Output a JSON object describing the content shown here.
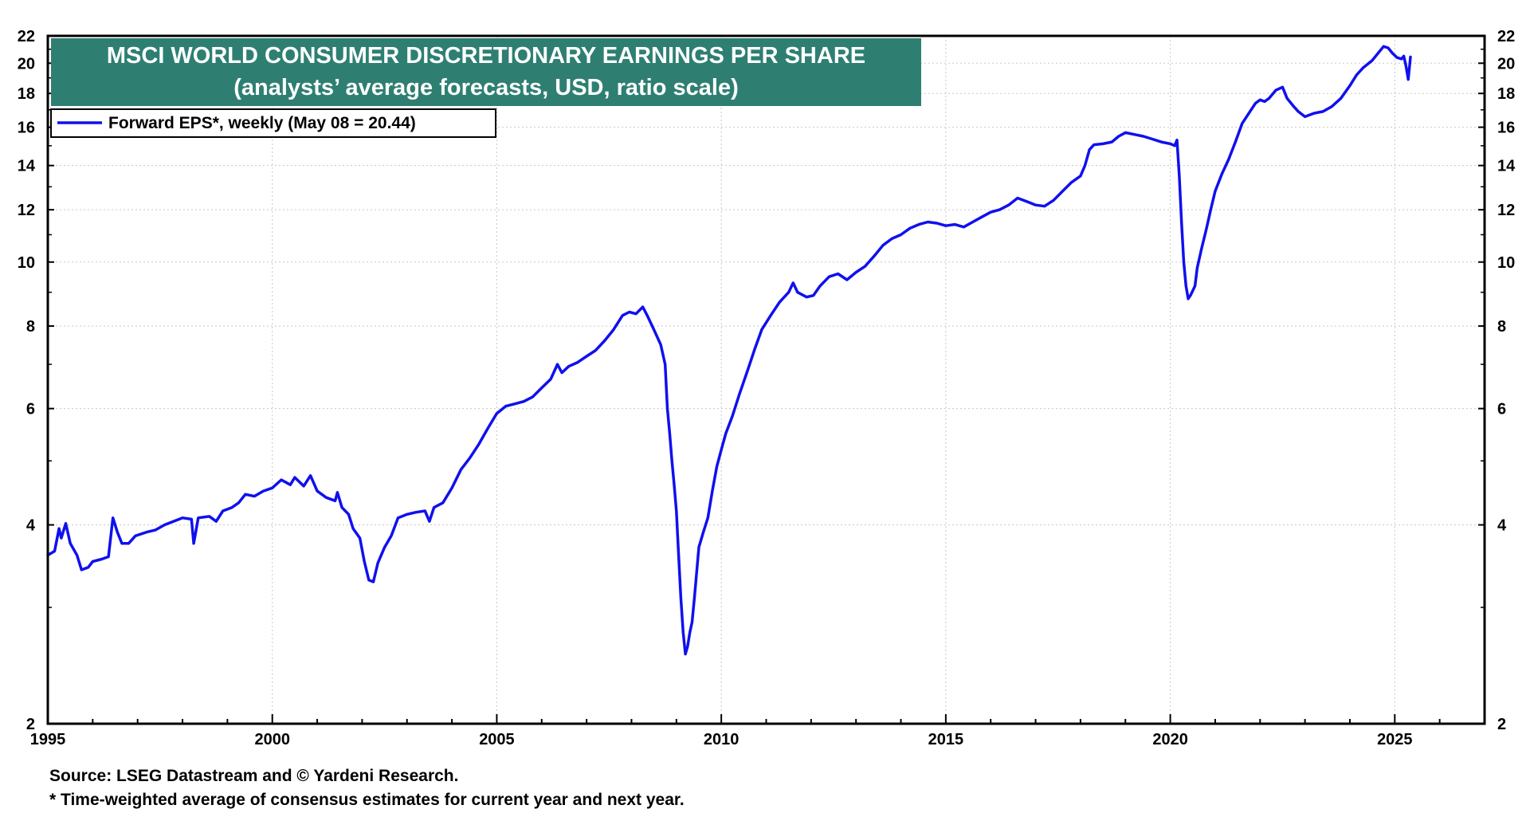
{
  "chart_data": {
    "type": "line",
    "title": "MSCI WORLD CONSUMER DISCRETIONARY EARNINGS PER SHARE",
    "subtitle": "(analysts’ average forecasts, USD, ratio scale)",
    "legend": {
      "entry": "Forward EPS*, weekly (May 08 = 20.44)",
      "placement": "top-left"
    },
    "scale": "log",
    "xlim": [
      1995,
      2027
    ],
    "ylim": [
      2,
      22
    ],
    "x_ticks": [
      1995,
      2000,
      2005,
      2010,
      2015,
      2020,
      2025
    ],
    "y_ticks": [
      2,
      4,
      6,
      8,
      10,
      12,
      14,
      16,
      18,
      20,
      22
    ],
    "grid": true,
    "line_color": "#1010ee",
    "title_bg": "#2e7f72",
    "series": [
      {
        "name": "Forward EPS*, weekly (May 08 = 20.44)",
        "points": [
          [
            1995.0,
            3.6
          ],
          [
            1995.15,
            3.65
          ],
          [
            1995.25,
            3.95
          ],
          [
            1995.3,
            3.82
          ],
          [
            1995.4,
            4.02
          ],
          [
            1995.5,
            3.75
          ],
          [
            1995.65,
            3.6
          ],
          [
            1995.75,
            3.42
          ],
          [
            1995.9,
            3.45
          ],
          [
            1996.0,
            3.52
          ],
          [
            1996.2,
            3.55
          ],
          [
            1996.35,
            3.58
          ],
          [
            1996.45,
            4.1
          ],
          [
            1996.55,
            3.9
          ],
          [
            1996.65,
            3.75
          ],
          [
            1996.8,
            3.75
          ],
          [
            1996.95,
            3.85
          ],
          [
            1997.2,
            3.9
          ],
          [
            1997.4,
            3.93
          ],
          [
            1997.6,
            4.0
          ],
          [
            1997.8,
            4.05
          ],
          [
            1998.0,
            4.1
          ],
          [
            1998.2,
            4.08
          ],
          [
            1998.25,
            3.75
          ],
          [
            1998.35,
            4.1
          ],
          [
            1998.6,
            4.12
          ],
          [
            1998.75,
            4.05
          ],
          [
            1998.9,
            4.2
          ],
          [
            1999.1,
            4.25
          ],
          [
            1999.25,
            4.32
          ],
          [
            1999.4,
            4.45
          ],
          [
            1999.6,
            4.42
          ],
          [
            1999.8,
            4.5
          ],
          [
            2000.0,
            4.55
          ],
          [
            2000.2,
            4.68
          ],
          [
            2000.4,
            4.6
          ],
          [
            2000.5,
            4.72
          ],
          [
            2000.7,
            4.58
          ],
          [
            2000.85,
            4.75
          ],
          [
            2001.0,
            4.5
          ],
          [
            2001.2,
            4.4
          ],
          [
            2001.4,
            4.35
          ],
          [
            2001.45,
            4.48
          ],
          [
            2001.55,
            4.25
          ],
          [
            2001.7,
            4.15
          ],
          [
            2001.8,
            3.95
          ],
          [
            2001.95,
            3.82
          ],
          [
            2002.05,
            3.52
          ],
          [
            2002.15,
            3.3
          ],
          [
            2002.25,
            3.28
          ],
          [
            2002.35,
            3.5
          ],
          [
            2002.5,
            3.7
          ],
          [
            2002.65,
            3.85
          ],
          [
            2002.8,
            4.1
          ],
          [
            2003.0,
            4.15
          ],
          [
            2003.2,
            4.18
          ],
          [
            2003.4,
            4.2
          ],
          [
            2003.5,
            4.05
          ],
          [
            2003.6,
            4.25
          ],
          [
            2003.8,
            4.32
          ],
          [
            2004.0,
            4.55
          ],
          [
            2004.2,
            4.85
          ],
          [
            2004.4,
            5.05
          ],
          [
            2004.6,
            5.3
          ],
          [
            2004.8,
            5.6
          ],
          [
            2005.0,
            5.9
          ],
          [
            2005.2,
            6.05
          ],
          [
            2005.4,
            6.1
          ],
          [
            2005.6,
            6.15
          ],
          [
            2005.8,
            6.25
          ],
          [
            2006.0,
            6.45
          ],
          [
            2006.2,
            6.65
          ],
          [
            2006.35,
            7.0
          ],
          [
            2006.45,
            6.8
          ],
          [
            2006.6,
            6.95
          ],
          [
            2006.8,
            7.05
          ],
          [
            2007.0,
            7.2
          ],
          [
            2007.2,
            7.35
          ],
          [
            2007.4,
            7.6
          ],
          [
            2007.6,
            7.9
          ],
          [
            2007.8,
            8.3
          ],
          [
            2007.95,
            8.4
          ],
          [
            2008.1,
            8.35
          ],
          [
            2008.25,
            8.55
          ],
          [
            2008.35,
            8.3
          ],
          [
            2008.5,
            7.9
          ],
          [
            2008.65,
            7.5
          ],
          [
            2008.75,
            7.0
          ],
          [
            2008.8,
            6.0
          ],
          [
            2008.85,
            5.5
          ],
          [
            2008.9,
            5.0
          ],
          [
            2008.95,
            4.6
          ],
          [
            2009.0,
            4.2
          ],
          [
            2009.05,
            3.6
          ],
          [
            2009.1,
            3.1
          ],
          [
            2009.15,
            2.75
          ],
          [
            2009.2,
            2.55
          ],
          [
            2009.25,
            2.62
          ],
          [
            2009.3,
            2.75
          ],
          [
            2009.35,
            2.85
          ],
          [
            2009.4,
            3.1
          ],
          [
            2009.5,
            3.7
          ],
          [
            2009.6,
            3.9
          ],
          [
            2009.7,
            4.1
          ],
          [
            2009.8,
            4.5
          ],
          [
            2009.9,
            4.9
          ],
          [
            2010.0,
            5.2
          ],
          [
            2010.1,
            5.5
          ],
          [
            2010.25,
            5.85
          ],
          [
            2010.4,
            6.3
          ],
          [
            2010.6,
            6.9
          ],
          [
            2010.75,
            7.4
          ],
          [
            2010.9,
            7.9
          ],
          [
            2011.1,
            8.3
          ],
          [
            2011.3,
            8.7
          ],
          [
            2011.5,
            9.0
          ],
          [
            2011.6,
            9.3
          ],
          [
            2011.7,
            9.0
          ],
          [
            2011.9,
            8.85
          ],
          [
            2012.05,
            8.9
          ],
          [
            2012.2,
            9.2
          ],
          [
            2012.4,
            9.5
          ],
          [
            2012.6,
            9.6
          ],
          [
            2012.8,
            9.4
          ],
          [
            2013.0,
            9.65
          ],
          [
            2013.2,
            9.85
          ],
          [
            2013.4,
            10.2
          ],
          [
            2013.6,
            10.6
          ],
          [
            2013.8,
            10.85
          ],
          [
            2014.0,
            11.0
          ],
          [
            2014.2,
            11.25
          ],
          [
            2014.4,
            11.4
          ],
          [
            2014.6,
            11.5
          ],
          [
            2014.8,
            11.45
          ],
          [
            2015.0,
            11.35
          ],
          [
            2015.2,
            11.4
          ],
          [
            2015.4,
            11.3
          ],
          [
            2015.6,
            11.5
          ],
          [
            2015.8,
            11.7
          ],
          [
            2016.0,
            11.9
          ],
          [
            2016.2,
            12.0
          ],
          [
            2016.4,
            12.2
          ],
          [
            2016.6,
            12.5
          ],
          [
            2016.8,
            12.35
          ],
          [
            2017.0,
            12.2
          ],
          [
            2017.2,
            12.15
          ],
          [
            2017.4,
            12.4
          ],
          [
            2017.6,
            12.8
          ],
          [
            2017.8,
            13.2
          ],
          [
            2018.0,
            13.5
          ],
          [
            2018.1,
            14.0
          ],
          [
            2018.2,
            14.8
          ],
          [
            2018.3,
            15.05
          ],
          [
            2018.5,
            15.1
          ],
          [
            2018.7,
            15.2
          ],
          [
            2018.85,
            15.5
          ],
          [
            2019.0,
            15.7
          ],
          [
            2019.2,
            15.6
          ],
          [
            2019.4,
            15.5
          ],
          [
            2019.6,
            15.35
          ],
          [
            2019.8,
            15.2
          ],
          [
            2020.0,
            15.1
          ],
          [
            2020.1,
            15.0
          ],
          [
            2020.15,
            15.3
          ],
          [
            2020.2,
            13.5
          ],
          [
            2020.25,
            11.5
          ],
          [
            2020.3,
            10.0
          ],
          [
            2020.35,
            9.2
          ],
          [
            2020.4,
            8.8
          ],
          [
            2020.45,
            8.9
          ],
          [
            2020.55,
            9.2
          ],
          [
            2020.6,
            9.8
          ],
          [
            2020.7,
            10.5
          ],
          [
            2020.8,
            11.2
          ],
          [
            2020.9,
            12.0
          ],
          [
            2021.0,
            12.8
          ],
          [
            2021.15,
            13.6
          ],
          [
            2021.3,
            14.3
          ],
          [
            2021.45,
            15.2
          ],
          [
            2021.6,
            16.2
          ],
          [
            2021.75,
            16.8
          ],
          [
            2021.9,
            17.4
          ],
          [
            2022.0,
            17.6
          ],
          [
            2022.1,
            17.5
          ],
          [
            2022.2,
            17.7
          ],
          [
            2022.35,
            18.2
          ],
          [
            2022.5,
            18.4
          ],
          [
            2022.6,
            17.7
          ],
          [
            2022.75,
            17.2
          ],
          [
            2022.85,
            16.9
          ],
          [
            2023.0,
            16.6
          ],
          [
            2023.2,
            16.8
          ],
          [
            2023.4,
            16.9
          ],
          [
            2023.6,
            17.2
          ],
          [
            2023.8,
            17.7
          ],
          [
            2024.0,
            18.5
          ],
          [
            2024.15,
            19.2
          ],
          [
            2024.3,
            19.7
          ],
          [
            2024.5,
            20.2
          ],
          [
            2024.65,
            20.8
          ],
          [
            2024.75,
            21.2
          ],
          [
            2024.85,
            21.1
          ],
          [
            2024.95,
            20.7
          ],
          [
            2025.05,
            20.4
          ],
          [
            2025.15,
            20.3
          ],
          [
            2025.2,
            20.5
          ],
          [
            2025.25,
            19.8
          ],
          [
            2025.3,
            18.9
          ],
          [
            2025.35,
            20.44
          ]
        ]
      }
    ],
    "source": "Source: LSEG Datastream and © Yardeni Research.",
    "footnote": "* Time-weighted average of consensus estimates for current year and next year."
  }
}
